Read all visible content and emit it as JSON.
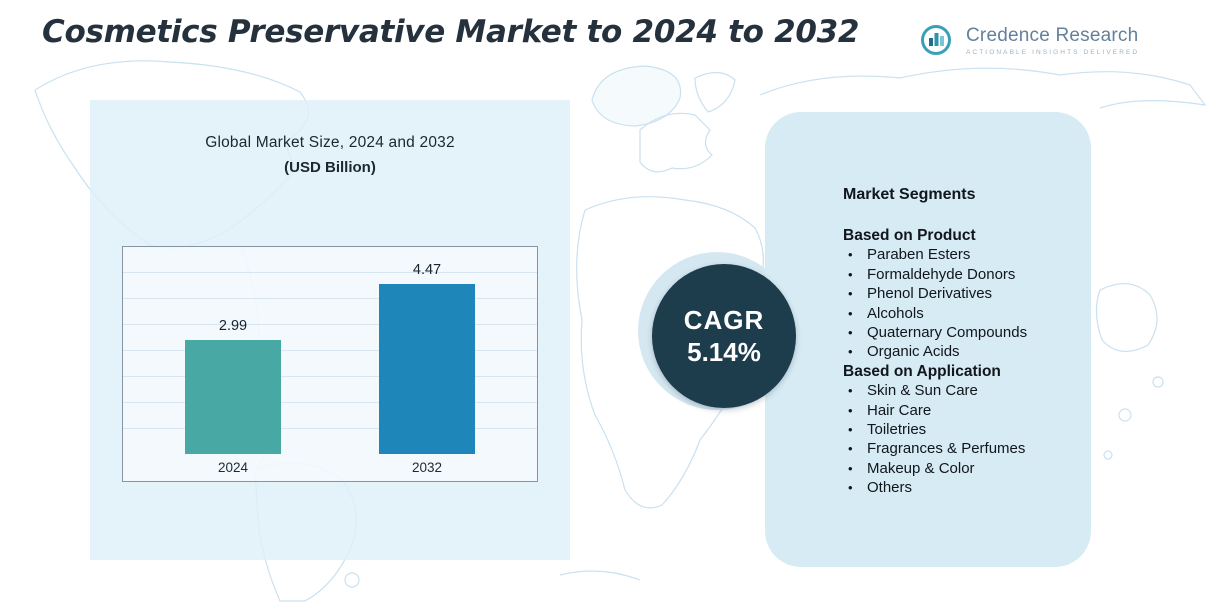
{
  "page": {
    "title": "Cosmetics Preservative Market to 2024 to 2032"
  },
  "logo": {
    "name": "Credence Research",
    "tagline": "ACTIONABLE INSIGHTS DELIVERED"
  },
  "chart_panel": {
    "title_line1": "Global Market Size, 2024 and 2032",
    "title_line2": "(USD Billion)"
  },
  "chart_data": {
    "type": "bar",
    "title": "Global Market Size, 2024 and 2032 (USD Billion)",
    "categories": [
      "2024",
      "2032"
    ],
    "values": [
      2.99,
      4.47
    ],
    "bar_colors": [
      "#48a8a3",
      "#1e86b8"
    ],
    "xlabel": "",
    "ylabel": "USD Billion",
    "ylim": [
      0,
      5
    ],
    "grid": true,
    "legend": "none",
    "value_labels": [
      "2.99",
      "4.47"
    ]
  },
  "cagr": {
    "label": "CAGR",
    "value": "5.14%"
  },
  "segments": {
    "title": "Market Segments",
    "groups": [
      {
        "heading": "Based on Product",
        "items": [
          "Paraben Esters",
          "Formaldehyde Donors",
          "Phenol Derivatives",
          "Alcohols",
          "Quaternary Compounds",
          "Organic Acids"
        ]
      },
      {
        "heading": "Based on Application",
        "items": [
          "Skin & Sun Care",
          "Hair Care",
          "Toiletries",
          "Fragrances & Perfumes",
          "Makeup & Color",
          "Others"
        ]
      }
    ]
  },
  "colors": {
    "panel_bg": "rgba(222,239,249,0.82)",
    "card_bg": "#d7ebf5",
    "cagr_bg": "#1d3c4c",
    "title_color": "#25313d",
    "map_stroke": "#c9e1f0",
    "logo_teal": "#39a0b5"
  }
}
